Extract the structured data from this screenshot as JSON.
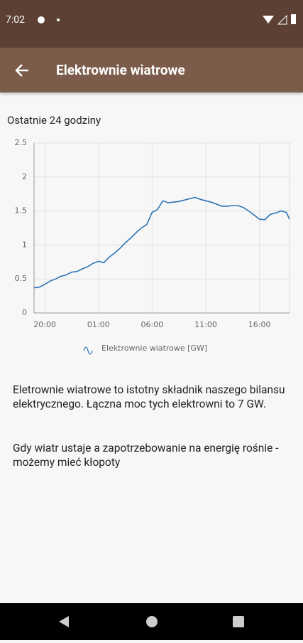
{
  "status_bar": {
    "time": "7:02"
  },
  "app_bar": {
    "title": "Elektrownie wiatrowe"
  },
  "subtitle": "Ostatnie 24 godziny",
  "chart_data": {
    "type": "line",
    "x": [
      -1,
      -0.5,
      0,
      0.5,
      1,
      1.5,
      2,
      2.5,
      3,
      3.5,
      4,
      4.5,
      5,
      5.5,
      6,
      6.5,
      7,
      7.5,
      8,
      8.5,
      9,
      9.5,
      10,
      10.5,
      11,
      11.5,
      12,
      12.5,
      13,
      13.5,
      14,
      14.5,
      15,
      15.5,
      16,
      16.5,
      17,
      17.5,
      18,
      18.5,
      19,
      19.5,
      20,
      20.5,
      21,
      21.5,
      22,
      22.5,
      22.8
    ],
    "series": [
      {
        "name": "Elektrownie wiatrowe [GW]",
        "color": "#2e75b6",
        "values": [
          0.37,
          0.38,
          0.42,
          0.47,
          0.5,
          0.54,
          0.56,
          0.6,
          0.61,
          0.65,
          0.68,
          0.73,
          0.76,
          0.74,
          0.82,
          0.88,
          0.95,
          1.03,
          1.1,
          1.18,
          1.25,
          1.3,
          1.48,
          1.52,
          1.65,
          1.62,
          1.63,
          1.64,
          1.66,
          1.68,
          1.7,
          1.67,
          1.65,
          1.63,
          1.6,
          1.57,
          1.57,
          1.58,
          1.58,
          1.55,
          1.5,
          1.44,
          1.38,
          1.37,
          1.45,
          1.47,
          1.5,
          1.48,
          1.38
        ]
      }
    ],
    "xlim": [
      -1,
      22.8
    ],
    "xticks": [
      {
        "value": 0,
        "label": "20:00"
      },
      {
        "value": 5,
        "label": "01:00"
      },
      {
        "value": 10,
        "label": "06:00"
      },
      {
        "value": 15,
        "label": "11:00"
      },
      {
        "value": 20,
        "label": "16:00"
      }
    ],
    "ylim": [
      0,
      2.5
    ],
    "yticks": [
      0,
      0.5,
      1,
      1.5,
      2,
      2.5
    ],
    "grid": true
  },
  "paragraphs": [
    "Eletrownie wiatrowe to istotny składnik naszego bilansu elektrycznego. Łączna moc tych elektrowni to 7 GW.",
    "Gdy wiatr ustaje a zapotrzebowanie na energię rośnie - możemy mieć kłopoty"
  ]
}
